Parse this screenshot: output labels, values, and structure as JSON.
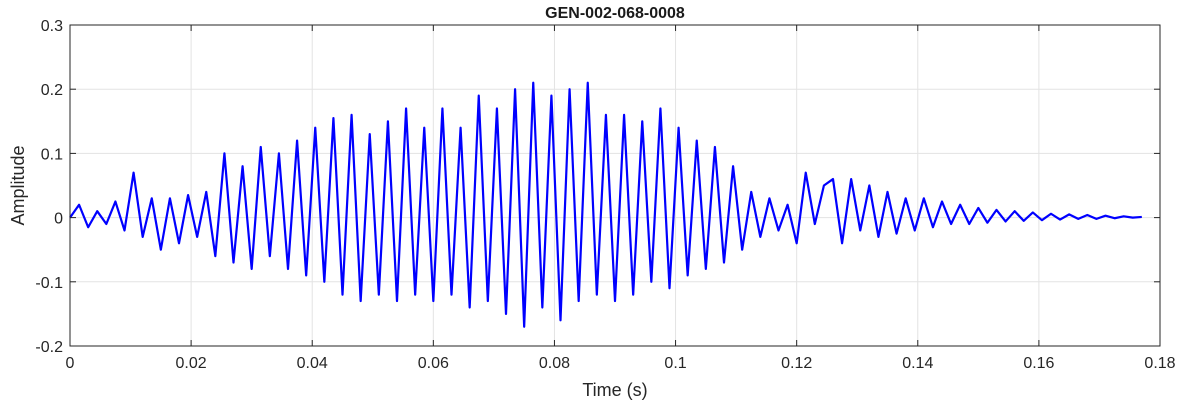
{
  "chart_data": {
    "type": "line",
    "title": "GEN-002-068-0008",
    "xlabel": "Time (s)",
    "ylabel": "Amplitude",
    "xlim": [
      0,
      0.18
    ],
    "ylim": [
      -0.2,
      0.3
    ],
    "xticks": [
      0,
      0.02,
      0.04,
      0.06,
      0.08,
      0.1,
      0.12,
      0.14,
      0.16,
      0.18
    ],
    "xtick_labels": [
      "0",
      "0.02",
      "0.04",
      "0.06",
      "0.08",
      "0.1",
      "0.12",
      "0.14",
      "0.16",
      "0.18"
    ],
    "yticks": [
      -0.2,
      -0.1,
      0,
      0.1,
      0.2,
      0.3
    ],
    "ytick_labels": [
      "-0.2",
      "-0.1",
      "0",
      "0.1",
      "0.2",
      "0.3"
    ],
    "grid": true,
    "color": "#0000ff",
    "series": [
      {
        "x": [
          0,
          0.0015,
          0.003,
          0.0045,
          0.006,
          0.0075,
          0.009,
          0.0105,
          0.012,
          0.0135,
          0.015,
          0.0165,
          0.018,
          0.0195,
          0.021,
          0.0225,
          0.024,
          0.0255,
          0.027,
          0.0285,
          0.03,
          0.0315,
          0.033,
          0.0345,
          0.036,
          0.0375,
          0.039,
          0.0405,
          0.042,
          0.0435,
          0.045,
          0.0465,
          0.048,
          0.0495,
          0.051,
          0.0525,
          0.054,
          0.0555,
          0.057,
          0.0585,
          0.06,
          0.0615,
          0.063,
          0.0645,
          0.066,
          0.0675,
          0.069,
          0.0705,
          0.072,
          0.0735,
          0.075,
          0.0765,
          0.078,
          0.0795,
          0.081,
          0.0825,
          0.084,
          0.0855,
          0.087,
          0.0885,
          0.09,
          0.0915,
          0.093,
          0.0945,
          0.096,
          0.0975,
          0.099,
          0.1005,
          0.102,
          0.1035,
          0.105,
          0.1065,
          0.108,
          0.1095,
          0.111,
          0.1125,
          0.114,
          0.1155,
          0.117,
          0.1185,
          0.12,
          0.1215,
          0.123,
          0.1245,
          0.126,
          0.1275,
          0.129,
          0.1305,
          0.132,
          0.1335,
          0.135,
          0.1365,
          0.138,
          0.1395,
          0.141,
          0.1425,
          0.144,
          0.1455,
          0.147,
          0.1485,
          0.15,
          0.1515,
          0.153,
          0.1545,
          0.156,
          0.1575,
          0.159,
          0.1605,
          0.162,
          0.1635,
          0.165,
          0.1665,
          0.168,
          0.1695,
          0.171,
          0.1725,
          0.174,
          0.1755,
          0.177
        ],
        "y": [
          0,
          0.02,
          -0.015,
          0.01,
          -0.01,
          0.025,
          -0.02,
          0.07,
          -0.03,
          0.03,
          -0.05,
          0.03,
          -0.04,
          0.035,
          -0.03,
          0.04,
          -0.06,
          0.1,
          -0.07,
          0.08,
          -0.08,
          0.11,
          -0.06,
          0.1,
          -0.08,
          0.12,
          -0.09,
          0.14,
          -0.1,
          0.155,
          -0.12,
          0.16,
          -0.13,
          0.13,
          -0.12,
          0.15,
          -0.13,
          0.17,
          -0.12,
          0.14,
          -0.13,
          0.17,
          -0.12,
          0.14,
          -0.14,
          0.19,
          -0.13,
          0.17,
          -0.15,
          0.2,
          -0.17,
          0.21,
          -0.14,
          0.19,
          -0.16,
          0.2,
          -0.13,
          0.21,
          -0.12,
          0.16,
          -0.13,
          0.16,
          -0.12,
          0.15,
          -0.1,
          0.17,
          -0.11,
          0.14,
          -0.09,
          0.12,
          -0.08,
          0.11,
          -0.07,
          0.08,
          -0.05,
          0.04,
          -0.03,
          0.03,
          -0.02,
          0.02,
          -0.04,
          0.07,
          -0.01,
          0.05,
          0.06,
          -0.04,
          0.06,
          -0.02,
          0.05,
          -0.03,
          0.04,
          -0.025,
          0.03,
          -0.02,
          0.03,
          -0.015,
          0.025,
          -0.01,
          0.02,
          -0.01,
          0.015,
          -0.008,
          0.012,
          -0.006,
          0.01,
          -0.005,
          0.008,
          -0.004,
          0.006,
          -0.003,
          0.005,
          -0.002,
          0.004,
          -0.002,
          0.003,
          -0.001,
          0.002,
          0.0,
          0.001
        ]
      }
    ]
  }
}
